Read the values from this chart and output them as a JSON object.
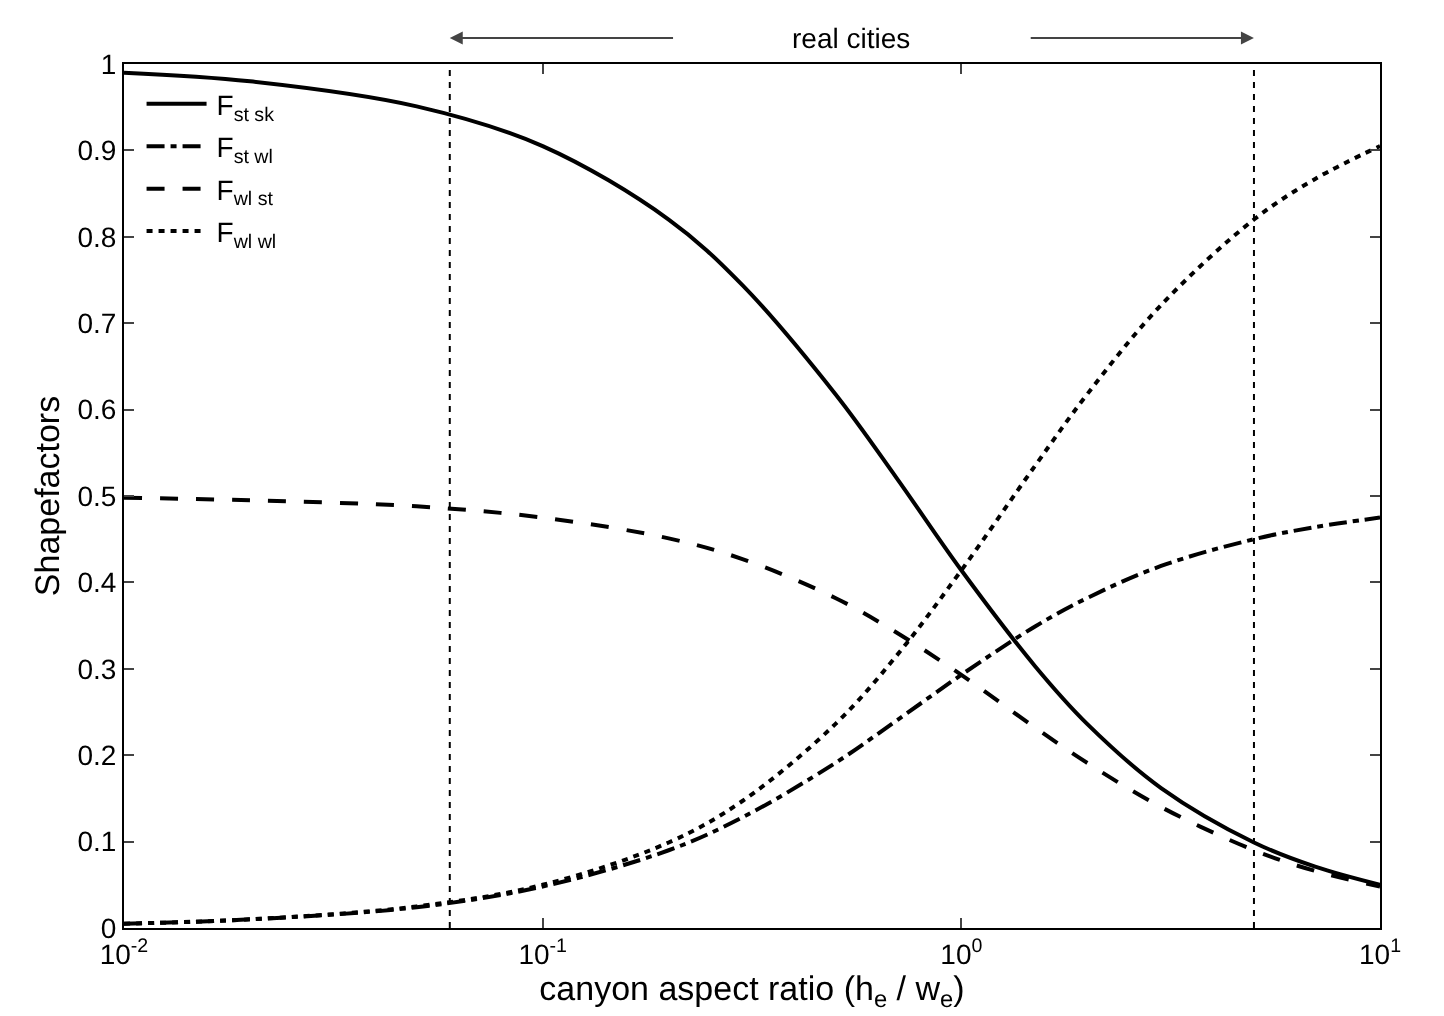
{
  "chart_data": {
    "type": "line",
    "xlabel": "canyon aspect ratio (h$_{e}$ / w$_{e}$)",
    "ylabel": "Shapefactors",
    "log": "x",
    "x": [
      0.01,
      0.02,
      0.05,
      0.1,
      0.2,
      0.3,
      0.5,
      0.7,
      1,
      1.5,
      2,
      3,
      5,
      7,
      10
    ],
    "series": [
      {
        "name": "F$_{st sk}$",
        "color": "#000000",
        "line_style": "solid",
        "values": [
          0.99,
          0.98,
          0.951,
          0.905,
          0.82,
          0.744,
          0.618,
          0.521,
          0.414,
          0.303,
          0.236,
          0.162,
          0.099,
          0.071,
          0.05
        ]
      },
      {
        "name": "F$_{st wl}$",
        "color": "#000000",
        "line_style": "dashdot",
        "values": [
          0.005,
          0.01,
          0.024,
          0.048,
          0.09,
          0.128,
          0.191,
          0.24,
          0.293,
          0.349,
          0.382,
          0.419,
          0.45,
          0.464,
          0.475
        ]
      },
      {
        "name": "F$_{wl st}$",
        "color": "#000000",
        "line_style": "dashed",
        "values": [
          0.498,
          0.495,
          0.488,
          0.475,
          0.451,
          0.427,
          0.382,
          0.342,
          0.293,
          0.232,
          0.191,
          0.14,
          0.09,
          0.066,
          0.048
        ]
      },
      {
        "name": "F$_{wl wl}$",
        "color": "#000000",
        "line_style": "dotted",
        "values": [
          0.005,
          0.01,
          0.025,
          0.05,
          0.099,
          0.147,
          0.236,
          0.315,
          0.414,
          0.535,
          0.618,
          0.721,
          0.82,
          0.867,
          0.905
        ]
      }
    ],
    "xlim": [
      0.01,
      10
    ],
    "xticks": [
      {
        "value": 0.01,
        "label": "10$^{-2}$"
      },
      {
        "value": 0.1,
        "label": "10$^{-1}$"
      },
      {
        "value": 1,
        "label": "10$^{0}$"
      },
      {
        "value": 10,
        "label": "10$^{1}$"
      }
    ],
    "ylim": [
      0,
      1
    ],
    "yticks": [
      0,
      0.1,
      0.2,
      0.3,
      0.4,
      0.5,
      0.6,
      0.7,
      0.8,
      0.9,
      1
    ],
    "ref_lines": [
      {
        "axis": "x",
        "value": 0.06,
        "color": "#000000",
        "line_style": "dotted"
      },
      {
        "axis": "x",
        "value": 5,
        "color": "#000000",
        "line_style": "dotted"
      }
    ],
    "annotations": [
      "real cities"
    ],
    "grid": false,
    "legend": "top left"
  }
}
